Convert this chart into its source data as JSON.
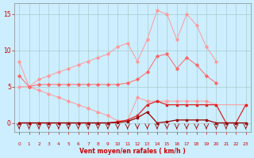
{
  "bg_color": "#cceeff",
  "grid_color": "#aacccc",
  "xlabel": "Vent moyen/en rafales ( km/h )",
  "ylim": [
    -1.2,
    16.5
  ],
  "xlim": [
    -0.5,
    23.5
  ],
  "yticks": [
    0,
    5,
    10,
    15
  ],
  "xticks": [
    0,
    1,
    2,
    3,
    4,
    5,
    6,
    7,
    8,
    9,
    10,
    11,
    12,
    13,
    14,
    15,
    16,
    17,
    18,
    19,
    20,
    21,
    22,
    23
  ],
  "upper_x": [
    0,
    1,
    2,
    3,
    4,
    5,
    6,
    7,
    8,
    9,
    10,
    11,
    12,
    13,
    14,
    15,
    16,
    17,
    18,
    19,
    20
  ],
  "upper_y": [
    8.5,
    5.0,
    6.0,
    6.5,
    7.0,
    7.5,
    8.0,
    8.5,
    9.0,
    9.5,
    10.5,
    11.0,
    8.5,
    11.5,
    15.5,
    15.0,
    11.5,
    15.0,
    13.5,
    10.5,
    8.5
  ],
  "lower_x": [
    0,
    1,
    2,
    3,
    4,
    5,
    6,
    7,
    8,
    9,
    10,
    11,
    12,
    13,
    14,
    15,
    16,
    17,
    18,
    19,
    20,
    23
  ],
  "lower_y": [
    5.0,
    5.0,
    4.5,
    4.0,
    3.5,
    3.0,
    2.5,
    2.0,
    1.5,
    1.0,
    0.3,
    0.3,
    3.5,
    3.0,
    3.0,
    3.0,
    3.0,
    3.0,
    3.0,
    3.0,
    2.5,
    2.5
  ],
  "mid_x": [
    0,
    1,
    2,
    3,
    4,
    5,
    6,
    7,
    8,
    9,
    10,
    11,
    12,
    13,
    14,
    15,
    16,
    17,
    18,
    19,
    20
  ],
  "mid_y": [
    6.5,
    5.0,
    5.3,
    5.3,
    5.3,
    5.3,
    5.3,
    5.3,
    5.3,
    5.3,
    5.3,
    5.5,
    6.0,
    7.0,
    9.2,
    9.5,
    7.5,
    9.0,
    8.0,
    6.5,
    5.5
  ],
  "med_red_x": [
    0,
    1,
    2,
    3,
    4,
    5,
    6,
    7,
    8,
    9,
    10,
    11,
    12,
    13,
    14,
    15,
    16,
    17,
    18,
    19,
    20,
    21,
    22,
    23
  ],
  "med_red_y": [
    0,
    0,
    0,
    0,
    0,
    0,
    0,
    0,
    0,
    0,
    0.15,
    0.4,
    1.0,
    2.5,
    3.0,
    2.5,
    2.5,
    2.5,
    2.5,
    2.5,
    2.5,
    0,
    0,
    2.5
  ],
  "dark_red_x": [
    0,
    1,
    2,
    3,
    4,
    5,
    6,
    7,
    8,
    9,
    10,
    11,
    12,
    13,
    14,
    15,
    16,
    17,
    18,
    19,
    20,
    21,
    22,
    23
  ],
  "dark_red_y": [
    0,
    0,
    0,
    0,
    0,
    0,
    0,
    0,
    0,
    0,
    0.05,
    0.2,
    0.7,
    1.5,
    0.0,
    0.15,
    0.4,
    0.4,
    0.4,
    0.4,
    0,
    0,
    0,
    0
  ],
  "color_light_pink": "#ff9999",
  "color_mid_pink": "#ff6666",
  "color_med_red": "#dd2222",
  "color_dark_red": "#990000"
}
